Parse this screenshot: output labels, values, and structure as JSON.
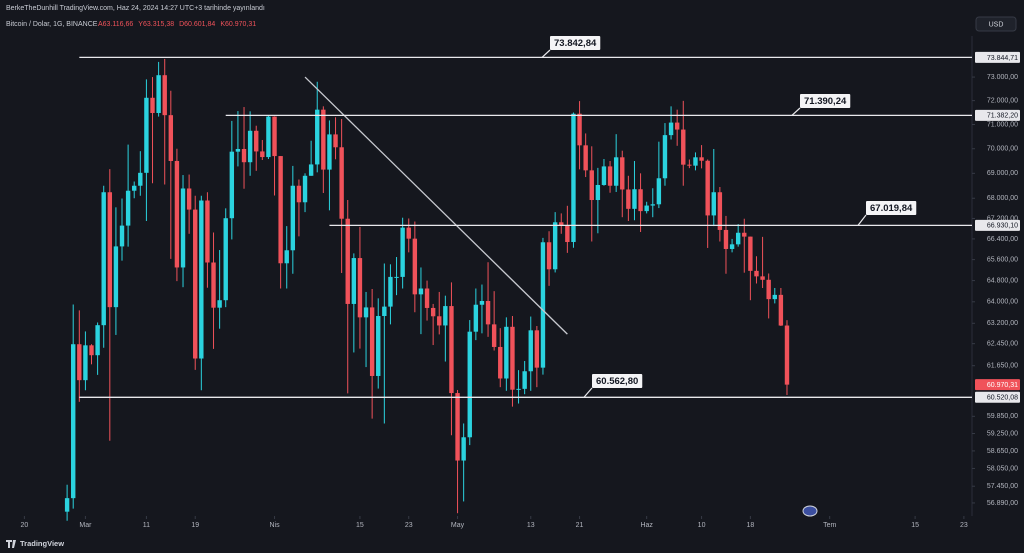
{
  "header": {
    "publisher": "BerkeTheDunhill TradingView.com, Haz 24, 2024 14:27 UTC+3 tarihinde yayınlandı"
  },
  "chart_data": {
    "type": "candlestick",
    "title": "Bitcoin / Dolar, 1G, BINANCE",
    "ohlc_labels": [
      "A63.116,66",
      "Y63.315,38",
      "D60.601,84",
      "K60.970,31"
    ],
    "currency": "USD",
    "x": [
      "02-27",
      "02-28",
      "02-29",
      "03-01",
      "03-02",
      "03-03",
      "03-04",
      "03-05",
      "03-06",
      "03-07",
      "03-08",
      "03-09",
      "03-10",
      "03-11",
      "03-12",
      "03-13",
      "03-14",
      "03-15",
      "03-16",
      "03-17",
      "03-18",
      "03-19",
      "03-20",
      "03-21",
      "03-22",
      "03-23",
      "03-24",
      "03-25",
      "03-26",
      "03-27",
      "03-28",
      "03-29",
      "03-30",
      "03-31",
      "04-01",
      "04-02",
      "04-03",
      "04-04",
      "04-05",
      "04-06",
      "04-07",
      "04-08",
      "04-09",
      "04-10",
      "04-11",
      "04-12",
      "04-13",
      "04-14",
      "04-15",
      "04-16",
      "04-17",
      "04-18",
      "04-19",
      "04-20",
      "04-21",
      "04-22",
      "04-23",
      "04-24",
      "04-25",
      "04-26",
      "04-27",
      "04-28",
      "04-29",
      "04-30",
      "05-01",
      "05-02",
      "05-03",
      "05-04",
      "05-05",
      "05-06",
      "05-07",
      "05-08",
      "05-09",
      "05-10",
      "05-11",
      "05-12",
      "05-13",
      "05-14",
      "05-15",
      "05-16",
      "05-17",
      "05-18",
      "05-19",
      "05-20",
      "05-21",
      "05-22",
      "05-23",
      "05-24",
      "05-25",
      "05-26",
      "05-27",
      "05-28",
      "05-29",
      "05-30",
      "05-31",
      "06-01",
      "06-02",
      "06-03",
      "06-04",
      "06-05",
      "06-06",
      "06-07",
      "06-08",
      "06-09",
      "06-10",
      "06-11",
      "06-12",
      "06-13",
      "06-14",
      "06-15",
      "06-16",
      "06-17",
      "06-18",
      "06-19",
      "06-20",
      "06-21",
      "06-22",
      "06-23",
      "06-24"
    ],
    "open": [
      56600,
      57050,
      62430,
      61130,
      62390,
      62030,
      63130,
      68240,
      63800,
      66110,
      66920,
      68300,
      68500,
      69020,
      72120,
      71480,
      73080,
      71390,
      69500,
      65300,
      68390,
      67550,
      61910,
      67910,
      65490,
      63780,
      64060,
      67210,
      69880,
      69990,
      69450,
      70740,
      69890,
      69660,
      71330,
      69700,
      65460,
      65960,
      68500,
      67840,
      68900,
      69360,
      71620,
      69150,
      70590,
      70060,
      67190,
      63920,
      65660,
      63420,
      63790,
      61280,
      63470,
      63820,
      64940,
      64940,
      66840,
      66410,
      64280,
      64500,
      63770,
      63460,
      63120,
      63840,
      60670,
      58320,
      59120,
      62890,
      63890,
      64030,
      63160,
      62330,
      61190,
      63070,
      60790,
      60820,
      61450,
      62940,
      61580,
      66270,
      65230,
      67050,
      66940,
      66280,
      71450,
      70140,
      69120,
      67930,
      68530,
      69280,
      68500,
      69650,
      68350,
      67580,
      68360,
      67490,
      67710,
      67760,
      68800,
      70560,
      71080,
      70790,
      69350,
      69310,
      69650,
      69510,
      67320,
      68240,
      66750,
      66010,
      66190,
      66640,
      66490,
      65170,
      64960,
      64830,
      64100,
      64260,
      63116.66
    ],
    "high": [
      57500,
      63900,
      63680,
      62900,
      62430,
      63230,
      68500,
      69170,
      67640,
      67990,
      70170,
      68670,
      69900,
      72900,
      73000,
      73650,
      73780,
      72420,
      70000,
      68930,
      68950,
      68100,
      68100,
      68240,
      66650,
      65970,
      67600,
      71150,
      71560,
      71730,
      71550,
      70950,
      70360,
      71370,
      71340,
      69700,
      66900,
      69300,
      68750,
      69000,
      70330,
      72800,
      71760,
      71170,
      71300,
      71230,
      67930,
      65840,
      66870,
      64370,
      64480,
      64130,
      65450,
      65420,
      65700,
      67230,
      67200,
      67080,
      65300,
      64800,
      63920,
      64370,
      64230,
      64730,
      60780,
      59600,
      63320,
      64500,
      64650,
      65500,
      64400,
      63020,
      63420,
      63470,
      61490,
      61820,
      63450,
      63100,
      66440,
      66700,
      67450,
      67400,
      67700,
      71500,
      71980,
      70630,
      70100,
      69220,
      69580,
      69500,
      70600,
      69920,
      68900,
      69500,
      69000,
      67860,
      68400,
      70290,
      71060,
      71760,
      71620,
      71990,
      69560,
      69850,
      70150,
      69560,
      69990,
      68450,
      67300,
      66400,
      66980,
      67190,
      66490,
      65730,
      66480,
      65070,
      64520,
      64520,
      63315.38
    ],
    "low": [
      56300,
      56700,
      60360,
      60770,
      61700,
      61320,
      62300,
      59000,
      62770,
      65560,
      66100,
      68000,
      68100,
      67100,
      68600,
      71330,
      68550,
      65630,
      64780,
      64550,
      66600,
      61500,
      60770,
      64530,
      62260,
      63000,
      63800,
      66380,
      69280,
      68380,
      68900,
      69100,
      69540,
      69580,
      68110,
      64500,
      64500,
      65060,
      66500,
      67450,
      68900,
      69040,
      68210,
      67520,
      69570,
      65090,
      60660,
      62130,
      62270,
      61600,
      59770,
      60830,
      59600,
      63160,
      64250,
      64500,
      65880,
      63610,
      62800,
      63300,
      62400,
      62790,
      61800,
      59190,
      56550,
      56940,
      58850,
      62580,
      62830,
      62700,
      62200,
      60880,
      60750,
      60190,
      60300,
      60630,
      60750,
      60880,
      61330,
      64600,
      65110,
      66600,
      65860,
      66060,
      69160,
      68850,
      66300,
      66620,
      68500,
      68220,
      68250,
      67250,
      67100,
      67130,
      66670,
      67400,
      67250,
      67610,
      68500,
      70380,
      70120,
      68500,
      69210,
      69120,
      69200,
      66050,
      66900,
      66300,
      65060,
      65880,
      66100,
      65100,
      64060,
      64690,
      64520,
      63380,
      63940,
      63100,
      60601.84
    ],
    "close": [
      57050,
      62430,
      61130,
      62390,
      62030,
      63130,
      68240,
      63800,
      66110,
      66920,
      68300,
      68500,
      69020,
      72120,
      71480,
      73080,
      71390,
      69500,
      65300,
      68390,
      67550,
      61910,
      67910,
      65490,
      63780,
      64060,
      67210,
      69880,
      69990,
      69450,
      70740,
      69890,
      69660,
      71330,
      69700,
      65460,
      65960,
      68500,
      67840,
      68900,
      69360,
      71620,
      69150,
      70590,
      70060,
      67190,
      63920,
      65660,
      63420,
      63790,
      61280,
      63470,
      63820,
      64940,
      64940,
      66840,
      66410,
      64280,
      64500,
      63770,
      63460,
      63120,
      63840,
      60670,
      58320,
      59120,
      62890,
      63890,
      64030,
      63160,
      62330,
      61190,
      63070,
      60790,
      60820,
      61450,
      62940,
      61580,
      66270,
      65230,
      67050,
      66940,
      66280,
      71450,
      70140,
      69120,
      67930,
      68530,
      69280,
      68500,
      69650,
      68350,
      67580,
      68360,
      67490,
      67710,
      67760,
      68800,
      70560,
      71080,
      70790,
      69350,
      69310,
      69650,
      69510,
      67320,
      68240,
      66750,
      66010,
      66190,
      66640,
      66490,
      65170,
      64960,
      64830,
      64100,
      64260,
      63116.66,
      60970.31
    ],
    "last_label": "60.970,31",
    "up_color": "#2bd3df",
    "down_color": "#f0525a",
    "log_scale": true,
    "xlim": [
      "02-16",
      "07-24"
    ],
    "ylim": [
      56490,
      75480
    ],
    "xticks": [
      {
        "value": "02-20",
        "label": "20"
      },
      {
        "value": "03-01",
        "label": "Mar"
      },
      {
        "value": "03-11",
        "label": "11"
      },
      {
        "value": "03-19",
        "label": "19"
      },
      {
        "value": "04-01",
        "label": "Nis"
      },
      {
        "value": "04-15",
        "label": "15"
      },
      {
        "value": "04-23",
        "label": "23"
      },
      {
        "value": "05-01",
        "label": "May"
      },
      {
        "value": "05-13",
        "label": "13"
      },
      {
        "value": "05-21",
        "label": "21"
      },
      {
        "value": "06-01",
        "label": "Haz"
      },
      {
        "value": "06-10",
        "label": "10"
      },
      {
        "value": "06-18",
        "label": "18"
      },
      {
        "value": "07-01",
        "label": "Tem"
      },
      {
        "value": "07-15",
        "label": "15"
      },
      {
        "value": "07-23",
        "label": "23"
      }
    ],
    "yticks": [
      {
        "value": 73000,
        "label": "73.000,00"
      },
      {
        "value": 72000,
        "label": "72.000,00"
      },
      {
        "value": 71000,
        "label": "71.000,00"
      },
      {
        "value": 70000,
        "label": "70.000,00"
      },
      {
        "value": 69000,
        "label": "69.000,00"
      },
      {
        "value": 68000,
        "label": "68.000,00"
      },
      {
        "value": 67200,
        "label": "67.200,00"
      },
      {
        "value": 66400,
        "label": "66.400,00"
      },
      {
        "value": 65600,
        "label": "65.600,00"
      },
      {
        "value": 64800,
        "label": "64.800,00"
      },
      {
        "value": 64000,
        "label": "64.000,00"
      },
      {
        "value": 63200,
        "label": "63.200,00"
      },
      {
        "value": 62450,
        "label": "62.450,00"
      },
      {
        "value": 61650,
        "label": "61.650,00"
      },
      {
        "value": 59850,
        "label": "59.850,00"
      },
      {
        "value": 59250,
        "label": "59.250,00"
      },
      {
        "value": 58650,
        "label": "58.650,00"
      },
      {
        "value": 58050,
        "label": "58.050,00"
      },
      {
        "value": 57450,
        "label": "57.450,00"
      },
      {
        "value": 56890,
        "label": "56.890,00"
      }
    ],
    "hlines": {
      "values": [
        73844.71,
        71382.2,
        66930.1,
        60520.08
      ],
      "value_labels": [
        "73.844,71",
        "71.382,20",
        "66.930,10",
        "60.520,08"
      ],
      "callouts": [
        "73.842,84",
        "71.390,24",
        "67.019,84",
        "60.562,80"
      ],
      "starts": [
        "02-29",
        "03-24",
        "04-10",
        "02-29"
      ]
    },
    "trendline": {
      "x": [
        "04-06",
        "05-19"
      ],
      "values": [
        73000,
        62800
      ]
    }
  },
  "footer": {
    "brand": "TradingView"
  }
}
